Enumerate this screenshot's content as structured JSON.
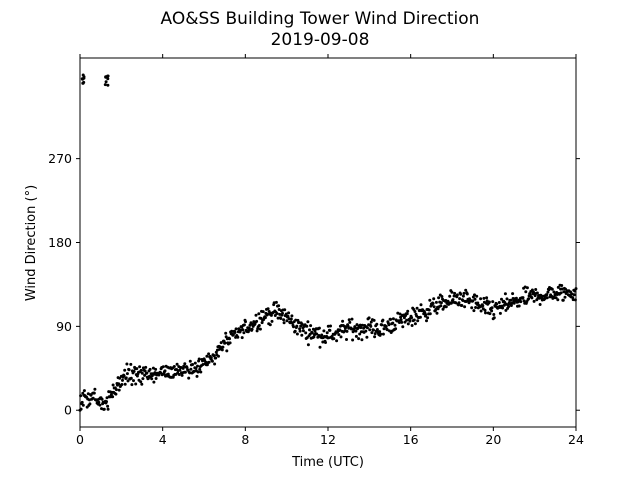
{
  "chart_data": {
    "type": "scatter",
    "title": "AO&SS Building Tower Wind Direction",
    "subtitle": "2019-09-08",
    "xlabel": "Time (UTC)",
    "ylabel": "Wind Direction (°)",
    "xlim": [
      0,
      24
    ],
    "ylim": [
      -18,
      378
    ],
    "xticks": [
      0,
      4,
      8,
      12,
      16,
      20,
      24
    ],
    "yticks": [
      0,
      90,
      180,
      270
    ],
    "grid": false,
    "marker_color": "#000000",
    "trend": {
      "x": [
        0.0,
        0.3,
        0.6,
        1.0,
        1.3,
        1.6,
        2.0,
        2.3,
        2.6,
        3.0,
        3.5,
        4.0,
        4.5,
        5.0,
        5.5,
        6.0,
        6.5,
        7.0,
        7.5,
        8.0,
        8.5,
        9.0,
        9.5,
        10.0,
        10.5,
        11.0,
        11.5,
        12.0,
        12.5,
        13.0,
        13.5,
        14.0,
        14.5,
        15.0,
        15.5,
        16.0,
        16.5,
        17.0,
        17.5,
        18.0,
        18.5,
        19.0,
        19.5,
        20.0,
        20.5,
        21.0,
        21.5,
        22.0,
        22.5,
        23.0,
        23.5,
        24.0
      ],
      "y": [
        5,
        15,
        12,
        8,
        10,
        20,
        32,
        38,
        40,
        38,
        37,
        40,
        42,
        44,
        46,
        50,
        58,
        72,
        80,
        88,
        95,
        102,
        106,
        100,
        90,
        85,
        82,
        80,
        83,
        88,
        87,
        90,
        86,
        92,
        96,
        100,
        104,
        110,
        114,
        118,
        120,
        116,
        110,
        108,
        112,
        116,
        120,
        122,
        124,
        125,
        126,
        127
      ]
    },
    "jitter": 7,
    "n_points": 900,
    "high_clusters": [
      {
        "x": [
          0.1,
          0.2
        ],
        "y": [
          350,
          360
        ]
      },
      {
        "x": [
          1.2,
          1.4
        ],
        "y": [
          345,
          360
        ]
      }
    ]
  }
}
